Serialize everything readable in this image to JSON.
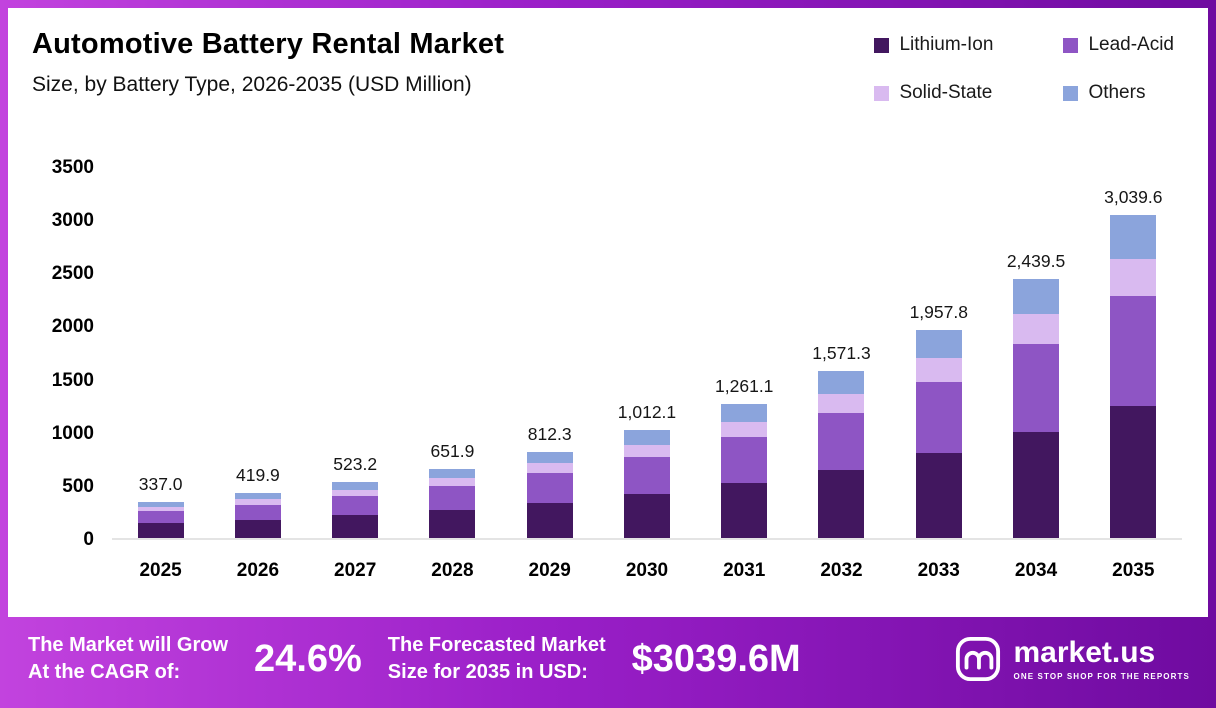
{
  "header": {
    "title": "Automotive Battery Rental Market",
    "subtitle": "Size, by Battery Type, 2026-2035 (USD Million)"
  },
  "legend": [
    {
      "label": "Lithium-Ion",
      "color": "#42175f"
    },
    {
      "label": "Lead-Acid",
      "color": "#8e55c4"
    },
    {
      "label": "Solid-State",
      "color": "#d9baf0"
    },
    {
      "label": "Others",
      "color": "#8ba4dc"
    }
  ],
  "chart_data": {
    "type": "bar",
    "stacked": true,
    "title": "Automotive Battery Rental Market Size, by Battery Type, 2026-2035 (USD Million)",
    "xlabel": "",
    "ylabel": "USD Million",
    "ylim": [
      0,
      3500
    ],
    "yticks": [
      0,
      500,
      1000,
      1500,
      2000,
      2500,
      3000,
      3500
    ],
    "grid": false,
    "legend_position": "top-right",
    "categories": [
      "2025",
      "2026",
      "2027",
      "2028",
      "2029",
      "2030",
      "2031",
      "2032",
      "2033",
      "2034",
      "2035"
    ],
    "totals": [
      337.0,
      419.9,
      523.2,
      651.9,
      812.3,
      1012.1,
      1261.1,
      1571.3,
      1957.8,
      2439.5,
      3039.6
    ],
    "totals_formatted": [
      "337.0",
      "419.9",
      "523.2",
      "651.9",
      "812.3",
      "1,012.1",
      "1,261.1",
      "1,571.3",
      "1,957.8",
      "2,439.5",
      "3,039.6"
    ],
    "series": [
      {
        "name": "Lithium-Ion",
        "key": "lithium-ion",
        "color": "#42175f",
        "values": [
          138.2,
          172.2,
          214.5,
          267.3,
          333.0,
          415.0,
          517.1,
          644.2,
          802.7,
          1000.2,
          1246.2
        ]
      },
      {
        "name": "Lead-Acid",
        "key": "lead-acid",
        "color": "#8e55c4",
        "values": [
          114.6,
          142.8,
          177.9,
          221.6,
          276.2,
          344.1,
          428.8,
          534.2,
          665.7,
          829.4,
          1033.5
        ]
      },
      {
        "name": "Solid-State",
        "key": "solid-state",
        "color": "#d9baf0",
        "values": [
          38.8,
          48.3,
          60.2,
          75.0,
          93.4,
          116.4,
          145.0,
          180.7,
          225.1,
          280.5,
          349.6
        ]
      },
      {
        "name": "Others",
        "key": "others",
        "color": "#8ba4dc",
        "values": [
          45.4,
          56.6,
          70.6,
          88.0,
          109.7,
          136.6,
          170.2,
          212.2,
          264.3,
          329.4,
          410.3
        ]
      }
    ]
  },
  "footer": {
    "cagr_label_line1": "The Market will Grow",
    "cagr_label_line2": "At the CAGR of:",
    "cagr_value": "24.6%",
    "forecast_label_line1": "The Forecasted Market",
    "forecast_label_line2": "Size for 2035 in USD:",
    "forecast_value": "$3039.6M",
    "brand_name": "market.us",
    "brand_tagline": "ONE STOP SHOP FOR THE REPORTS"
  }
}
